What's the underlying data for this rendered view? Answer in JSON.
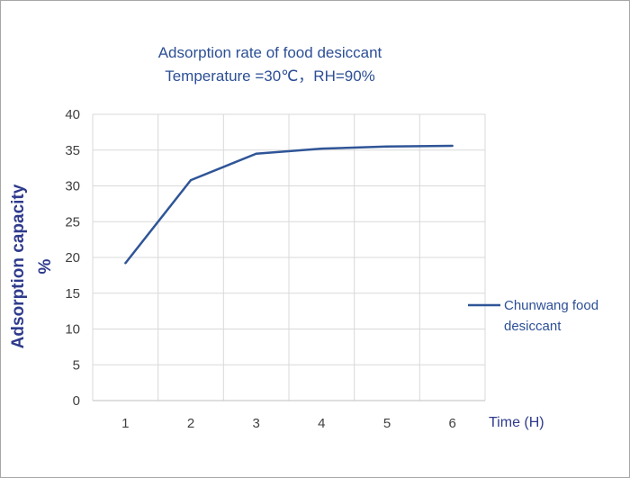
{
  "chart_data": {
    "type": "line",
    "title": "Adsorption rate of food desiccant",
    "subtitle": "Temperature =30℃，RH=90%",
    "ylabel_line1": "Adsorption capacity",
    "ylabel_line2": "%",
    "xlabel": "Time (H)",
    "categories": [
      "1",
      "2",
      "3",
      "4",
      "5",
      "6"
    ],
    "ylim": [
      0,
      40
    ],
    "yticks": [
      "0",
      "5",
      "10",
      "15",
      "20",
      "25",
      "30",
      "35",
      "40"
    ],
    "grid": true,
    "legend_position": "right",
    "series": [
      {
        "name": "Chunwang food desiccant",
        "legend_line1": "Chunwang food",
        "legend_line2": "desiccant",
        "color": "#2f5597",
        "values": [
          19.2,
          30.8,
          34.5,
          35.2,
          35.5,
          35.6
        ]
      }
    ]
  }
}
